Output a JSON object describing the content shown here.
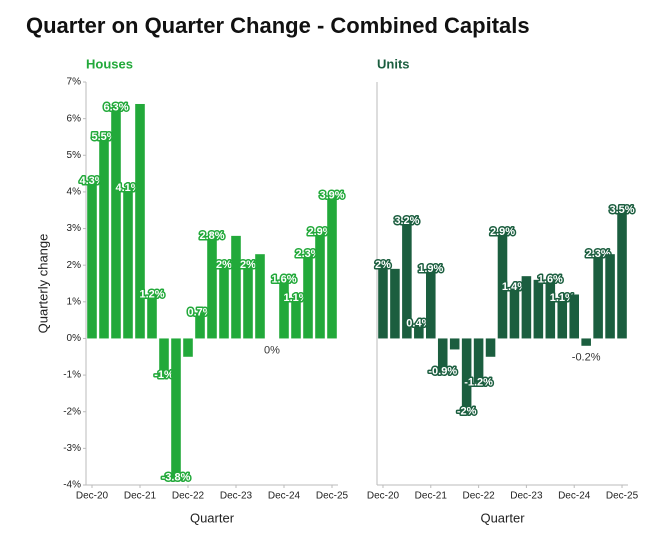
{
  "title": "Quarter on Quarter Change - Combined Capitals",
  "chart_data": [
    {
      "type": "bar",
      "title": "Houses",
      "xlabel": "Quarter",
      "ylabel": "Quarterly change",
      "color": "#22a93a",
      "categories": [
        "Dec-20",
        null,
        null,
        null,
        "Dec-21",
        null,
        null,
        null,
        "Dec-22",
        null,
        null,
        null,
        "Dec-23",
        null,
        null,
        null,
        "Dec-24",
        null,
        null,
        null,
        "Dec-25"
      ],
      "values": [
        4.3,
        5.5,
        6.3,
        4.1,
        6.4,
        1.2,
        -1,
        -3.8,
        -0.5,
        0.7,
        2.8,
        2,
        2.8,
        2,
        2.3,
        0,
        1.6,
        1.1,
        2.3,
        2.9,
        3.9
      ],
      "value_labels": [
        "4.3%",
        "5.5%",
        "6.3%",
        "4.1%",
        null,
        "1.2%",
        "-1%",
        "-3.8%",
        null,
        "0.7%",
        "2.8%",
        "2%",
        null,
        "2%",
        null,
        "0%",
        "1.6%",
        "1.1%",
        "2.3%",
        "2.9%",
        "3.9%"
      ],
      "ylim": [
        -4,
        7
      ],
      "yticks": [
        {
          "value": -4,
          "label": "-4%"
        },
        {
          "value": -3,
          "label": "-3%"
        },
        {
          "value": -2,
          "label": "-2%"
        },
        {
          "value": -1,
          "label": "-1%"
        },
        {
          "value": 0,
          "label": "0%"
        },
        {
          "value": 1,
          "label": "1%"
        },
        {
          "value": 2,
          "label": "2%"
        },
        {
          "value": 3,
          "label": "3%"
        },
        {
          "value": 4,
          "label": "4%"
        },
        {
          "value": 5,
          "label": "5%"
        },
        {
          "value": 6,
          "label": "6%"
        },
        {
          "value": 7,
          "label": "7%"
        }
      ]
    },
    {
      "type": "bar",
      "title": "Units",
      "xlabel": "Quarter",
      "color": "#1b5e3f",
      "categories": [
        "Dec-20",
        null,
        null,
        null,
        "Dec-21",
        null,
        null,
        null,
        "Dec-22",
        null,
        null,
        null,
        "Dec-23",
        null,
        null,
        null,
        "Dec-24",
        null,
        null,
        null,
        "Dec-25"
      ],
      "values": [
        2,
        1.9,
        3.2,
        0.4,
        1.9,
        -0.9,
        -0.3,
        -2,
        -1.2,
        -0.5,
        2.9,
        1.4,
        1.7,
        1.6,
        1.6,
        1.1,
        1.2,
        -0.2,
        2.3,
        2.3,
        3.5
      ],
      "value_labels": [
        "2%",
        null,
        "3.2%",
        "0.4%",
        "1.9%",
        "-0.9%",
        null,
        "-2%",
        "-1.2%",
        null,
        "2.9%",
        "1.4%",
        null,
        null,
        "1.6%",
        "1.1%",
        null,
        "-0.2%",
        "2.3%",
        null,
        "3.5%"
      ],
      "ylim": [
        -4,
        7
      ]
    }
  ]
}
